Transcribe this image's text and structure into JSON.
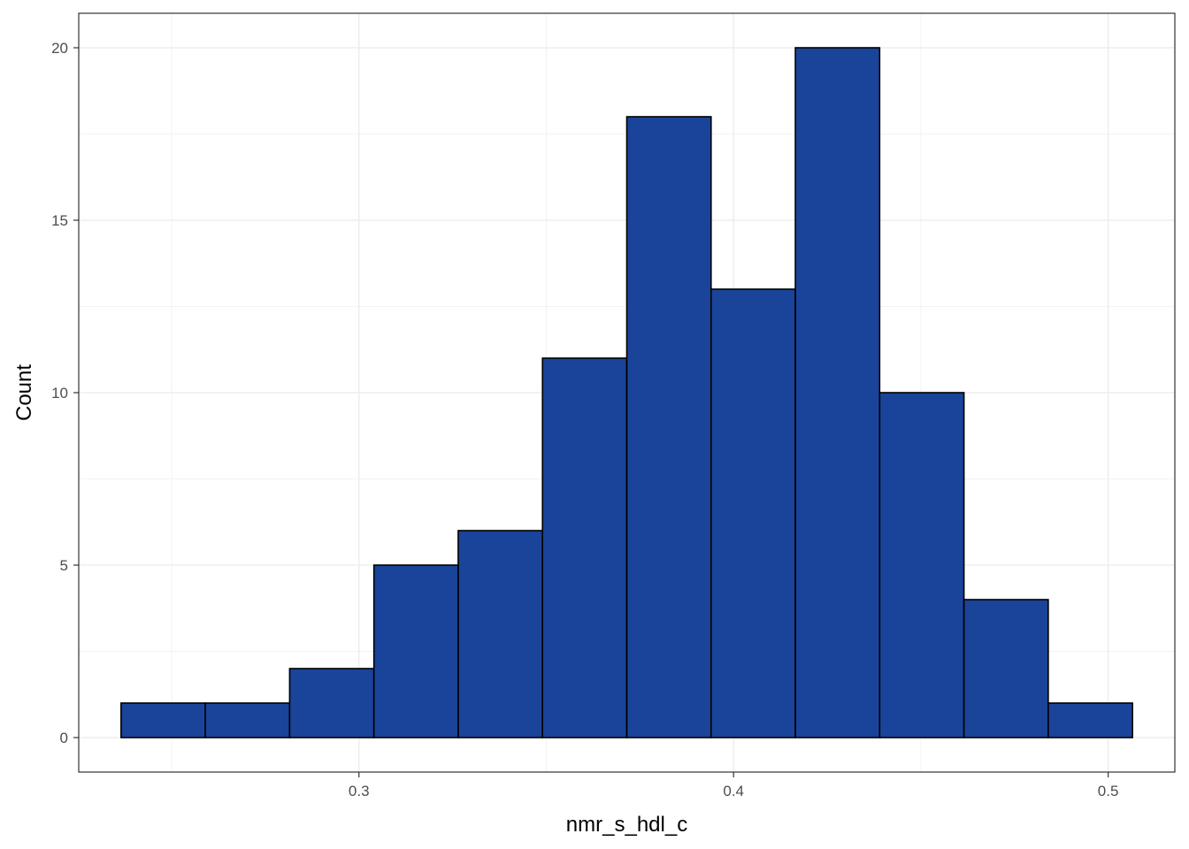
{
  "chart_data": {
    "type": "bar",
    "variant": "histogram",
    "title": "",
    "xlabel": "nmr_s_hdl_c",
    "ylabel": "Count",
    "bins": [
      {
        "x0": 0.2365,
        "x1": 0.259,
        "count": 1
      },
      {
        "x0": 0.259,
        "x1": 0.2815,
        "count": 1
      },
      {
        "x0": 0.2815,
        "x1": 0.304,
        "count": 2
      },
      {
        "x0": 0.304,
        "x1": 0.3265,
        "count": 5
      },
      {
        "x0": 0.3265,
        "x1": 0.349,
        "count": 6
      },
      {
        "x0": 0.349,
        "x1": 0.3715,
        "count": 11
      },
      {
        "x0": 0.3715,
        "x1": 0.394,
        "count": 18
      },
      {
        "x0": 0.394,
        "x1": 0.4165,
        "count": 13
      },
      {
        "x0": 0.4165,
        "x1": 0.439,
        "count": 20
      },
      {
        "x0": 0.439,
        "x1": 0.4615,
        "count": 10
      },
      {
        "x0": 0.4615,
        "x1": 0.484,
        "count": 4
      },
      {
        "x0": 0.484,
        "x1": 0.5065,
        "count": 1
      }
    ],
    "xlim": [
      0.2252,
      0.5178
    ],
    "ylim": [
      -1,
      21
    ],
    "x_ticks": [
      0.3,
      0.4,
      0.5
    ],
    "x_tick_labels": [
      "0.3",
      "0.4",
      "0.5"
    ],
    "y_ticks": [
      0,
      5,
      10,
      15,
      20
    ],
    "y_tick_labels": [
      "0",
      "5",
      "10",
      "15",
      "20"
    ],
    "grid": true,
    "legend": "none",
    "colors": {
      "bar_fill": "#1a4499",
      "bar_border": "#000000",
      "grid": "#ebebeb",
      "panel_border": "#333333"
    }
  }
}
